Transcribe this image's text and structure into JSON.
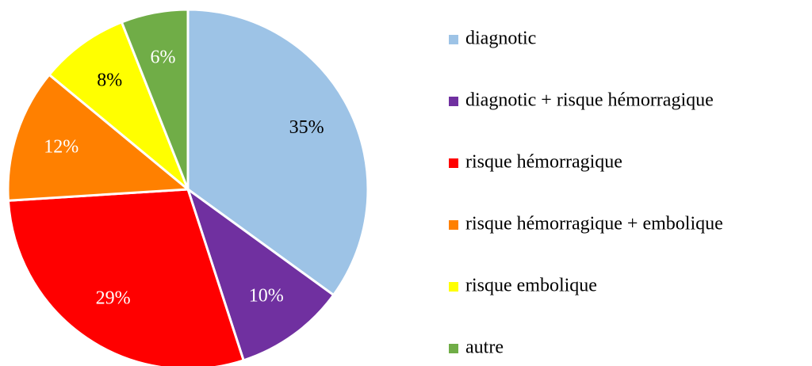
{
  "chart_data": {
    "type": "pie",
    "categories": [
      "diagnotic",
      "diagnotic + risque hémorragique",
      "risque hémorragique",
      "risque hémorragique + embolique",
      "risque embolique",
      "autre"
    ],
    "values": [
      35,
      10,
      29,
      12,
      8,
      6
    ],
    "value_labels": [
      "35%",
      "10%",
      "29%",
      "12%",
      "8%",
      "6%"
    ],
    "colors": [
      "#9dc3e6",
      "#7030a0",
      "#ff0000",
      "#ff8000",
      "#ffff00",
      "#70ad47"
    ],
    "legend": "right"
  }
}
